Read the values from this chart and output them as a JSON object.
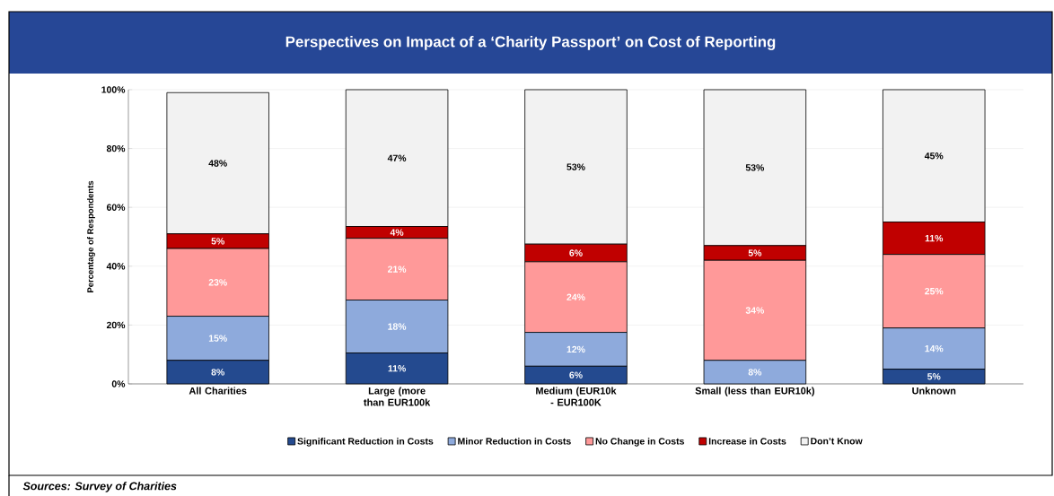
{
  "chart_data": {
    "type": "bar",
    "stacked": true,
    "title": "Perspectives on Impact of a ‘Charity Passport’ on Cost of Reporting",
    "ylabel": "Percentage of Respondents",
    "categories": [
      "All Charities",
      "Large (more than EUR100k",
      "Medium (EUR10k - EUR100K",
      "Small (less than EUR10k)",
      "Unknown"
    ],
    "series": [
      {
        "name": "Significant Reduction in Costs",
        "color": "#244a8f",
        "values": [
          8,
          10.5,
          6,
          0,
          5
        ],
        "value_labels": [
          "8%",
          "11%",
          "6%",
          null,
          "5%"
        ]
      },
      {
        "name": "Minor Reduction in Costs",
        "color": "#8eaadc",
        "values": [
          15,
          18,
          11.5,
          8,
          14
        ],
        "value_labels": [
          "15%",
          "18%",
          "12%",
          "8%",
          "14%"
        ]
      },
      {
        "name": "No Change in Costs",
        "color": "#ff9999",
        "values": [
          23,
          21,
          24,
          34,
          25
        ],
        "value_labels": [
          "23%",
          "21%",
          "24%",
          "34%",
          "25%"
        ]
      },
      {
        "name": "Increase in Costs",
        "color": "#c00000",
        "values": [
          5,
          4,
          6,
          5,
          11
        ],
        "value_labels": [
          "5%",
          "4%",
          "6%",
          "5%",
          "11%"
        ]
      },
      {
        "name": "Don’t Know",
        "color": "#f2f2f2",
        "values": [
          48,
          46.5,
          52.5,
          53,
          45
        ],
        "value_labels": [
          "48%",
          "47%",
          "53%",
          "53%",
          "45%"
        ]
      }
    ],
    "ylim": [
      0,
      100
    ],
    "yticks": [
      {
        "value": 0,
        "label": "0%"
      },
      {
        "value": 20,
        "label": "20%"
      },
      {
        "value": 40,
        "label": "40%"
      },
      {
        "value": 60,
        "label": "60%"
      },
      {
        "value": 80,
        "label": "80%"
      },
      {
        "value": 100,
        "label": "100%"
      }
    ],
    "grid": "y",
    "legend": "bottom",
    "annotations": [
      "Sources: Survey of Charities"
    ]
  }
}
